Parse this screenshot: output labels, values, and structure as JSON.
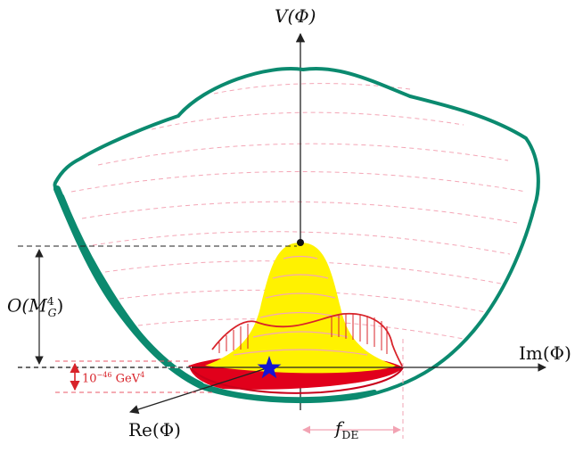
{
  "labels": {
    "v_axis": "V(Φ)",
    "im_axis": "Im(Φ)",
    "re_axis": "Re(Φ)",
    "planck_scale": "O(M",
    "planck_scale_sup": "4",
    "planck_scale_sub": "G",
    "planck_scale_close": ")",
    "de_scale_base": "10",
    "de_scale_exp": "−46",
    "de_scale_unit": " GeV",
    "de_scale_unit_exp": "4",
    "f_de": "f",
    "f_de_sub": "DE"
  },
  "colors": {
    "teal": "#0b8a6f",
    "yellow": "#fff200",
    "red": "#e1001b",
    "pink": "#f2a3b3",
    "star": "#1414d2",
    "axis": "#222222"
  }
}
